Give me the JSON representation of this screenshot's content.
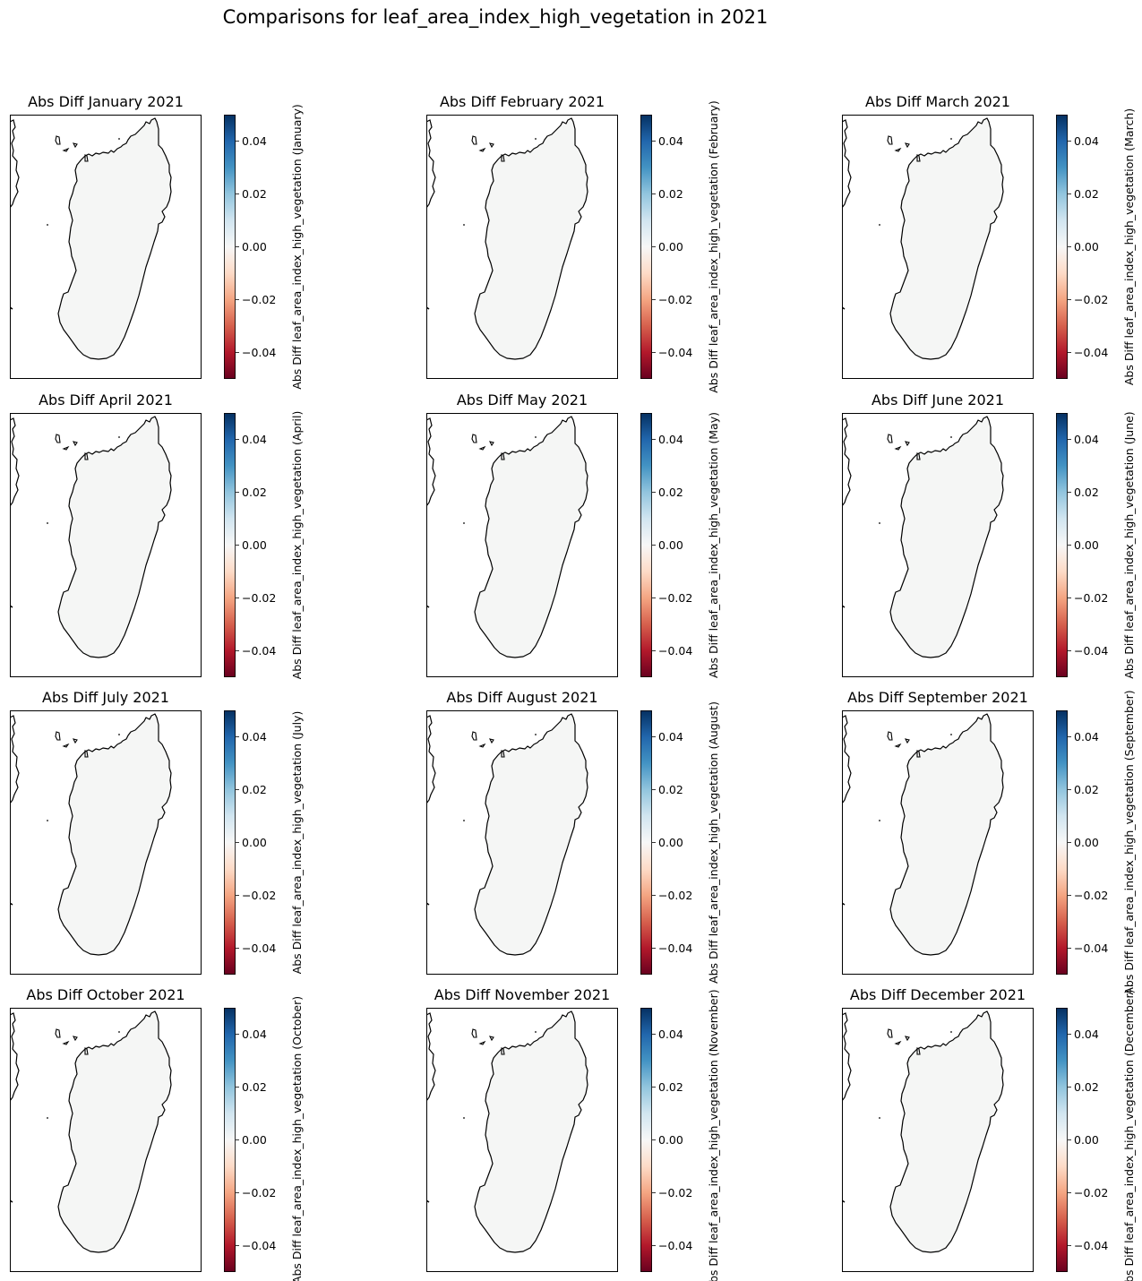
{
  "figure": {
    "title": "Comparisons for leaf_area_index_high_vegetation in 2021"
  },
  "colorbar": {
    "colormap": "RdBu",
    "range": [
      -0.05,
      0.05
    ],
    "ticks": [
      "0.04",
      "0.02",
      "0.00",
      "−0.02",
      "−0.04"
    ],
    "tick_values": [
      0.04,
      0.02,
      0.0,
      -0.02,
      -0.04
    ]
  },
  "land_color": "#f5f6f5",
  "panels": [
    {
      "title": "Abs Diff January 2021",
      "cbar_label": "Abs Diff leaf_area_index_high_vegetation (January)"
    },
    {
      "title": "Abs Diff February 2021",
      "cbar_label": "Abs Diff leaf_area_index_high_vegetation (February)"
    },
    {
      "title": "Abs Diff March 2021",
      "cbar_label": "Abs Diff leaf_area_index_high_vegetation (March)"
    },
    {
      "title": "Abs Diff April 2021",
      "cbar_label": "Abs Diff leaf_area_index_high_vegetation (April)"
    },
    {
      "title": "Abs Diff May 2021",
      "cbar_label": "Abs Diff leaf_area_index_high_vegetation (May)"
    },
    {
      "title": "Abs Diff June 2021",
      "cbar_label": "Abs Diff leaf_area_index_high_vegetation (June)"
    },
    {
      "title": "Abs Diff July 2021",
      "cbar_label": "Abs Diff leaf_area_index_high_vegetation (July)"
    },
    {
      "title": "Abs Diff August 2021",
      "cbar_label": "Abs Diff leaf_area_index_high_vegetation (August)"
    },
    {
      "title": "Abs Diff September 2021",
      "cbar_label": "Abs Diff leaf_area_index_high_vegetation (September)"
    },
    {
      "title": "Abs Diff October 2021",
      "cbar_label": "Abs Diff leaf_area_index_high_vegetation (October)"
    },
    {
      "title": "Abs Diff November 2021",
      "cbar_label": "Abs Diff leaf_area_index_high_vegetation (November)"
    },
    {
      "title": "Abs Diff December 2021",
      "cbar_label": "Abs Diff leaf_area_index_high_vegetation (December)"
    }
  ]
}
